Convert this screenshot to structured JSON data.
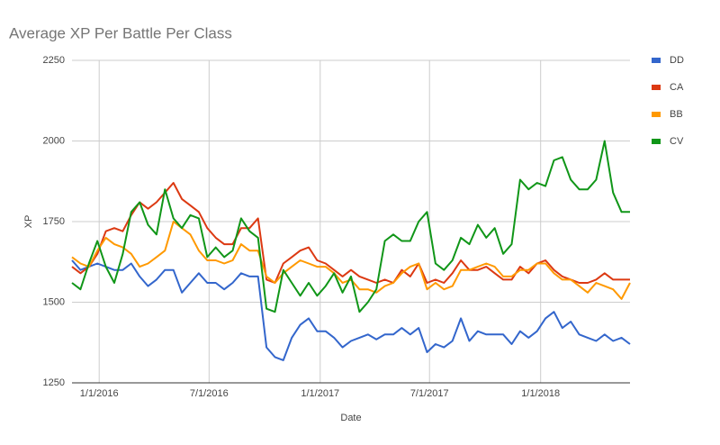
{
  "chart_data": {
    "type": "line",
    "title": "Average XP Per Battle Per Class",
    "x_label": "Date",
    "y_label": "XP",
    "x": [
      "2015-11-17",
      "2015-12-01",
      "2015-12-15",
      "2015-12-29",
      "2016-01-12",
      "2016-01-26",
      "2016-02-09",
      "2016-02-23",
      "2016-03-08",
      "2016-03-22",
      "2016-04-05",
      "2016-04-19",
      "2016-05-03",
      "2016-05-17",
      "2016-05-31",
      "2016-06-14",
      "2016-06-28",
      "2016-07-12",
      "2016-07-26",
      "2016-08-09",
      "2016-08-23",
      "2016-09-06",
      "2016-09-20",
      "2016-10-04",
      "2016-10-18",
      "2016-11-01",
      "2016-11-15",
      "2016-11-29",
      "2016-12-13",
      "2016-12-27",
      "2017-01-10",
      "2017-01-24",
      "2017-02-07",
      "2017-02-21",
      "2017-03-07",
      "2017-03-21",
      "2017-04-04",
      "2017-04-18",
      "2017-05-02",
      "2017-05-16",
      "2017-05-30",
      "2017-06-13",
      "2017-06-27",
      "2017-07-11",
      "2017-07-25",
      "2017-08-08",
      "2017-08-22",
      "2017-09-05",
      "2017-09-19",
      "2017-10-03",
      "2017-10-17",
      "2017-10-31",
      "2017-11-14",
      "2017-11-28",
      "2017-12-12",
      "2017-12-26",
      "2018-01-09",
      "2018-01-23",
      "2018-02-06",
      "2018-02-20",
      "2018-03-06",
      "2018-03-20",
      "2018-04-03",
      "2018-04-17",
      "2018-05-01",
      "2018-05-15",
      "2018-05-29"
    ],
    "series": [
      {
        "name": "DD",
        "color": "#3366cc",
        "values": [
          1630,
          1600,
          1610,
          1620,
          1610,
          1600,
          1600,
          1620,
          1580,
          1550,
          1570,
          1600,
          1600,
          1530,
          1560,
          1590,
          1560,
          1560,
          1540,
          1560,
          1590,
          1580,
          1580,
          1360,
          1330,
          1320,
          1390,
          1430,
          1450,
          1410,
          1410,
          1390,
          1360,
          1380,
          1390,
          1400,
          1385,
          1400,
          1400,
          1420,
          1400,
          1420,
          1345,
          1370,
          1360,
          1380,
          1450,
          1380,
          1410,
          1400,
          1400,
          1400,
          1370,
          1410,
          1390,
          1410,
          1450,
          1470,
          1420,
          1440,
          1400,
          1390,
          1380,
          1400,
          1380,
          1390,
          1370
        ]
      },
      {
        "name": "CA",
        "color": "#dc3912",
        "values": [
          1610,
          1590,
          1610,
          1650,
          1720,
          1730,
          1720,
          1770,
          1810,
          1790,
          1810,
          1840,
          1870,
          1820,
          1800,
          1780,
          1730,
          1700,
          1680,
          1680,
          1730,
          1730,
          1760,
          1570,
          1560,
          1620,
          1640,
          1660,
          1670,
          1630,
          1620,
          1600,
          1580,
          1600,
          1580,
          1570,
          1560,
          1570,
          1560,
          1600,
          1580,
          1620,
          1560,
          1570,
          1560,
          1590,
          1630,
          1600,
          1600,
          1610,
          1590,
          1570,
          1570,
          1610,
          1590,
          1620,
          1630,
          1600,
          1580,
          1570,
          1560,
          1560,
          1570,
          1590,
          1570,
          1570,
          1570
        ]
      },
      {
        "name": "BB",
        "color": "#ff9900",
        "values": [
          1640,
          1620,
          1610,
          1660,
          1700,
          1680,
          1670,
          1650,
          1610,
          1620,
          1640,
          1660,
          1750,
          1730,
          1710,
          1660,
          1630,
          1630,
          1620,
          1630,
          1680,
          1660,
          1660,
          1580,
          1560,
          1590,
          1610,
          1630,
          1620,
          1610,
          1610,
          1590,
          1560,
          1570,
          1540,
          1540,
          1530,
          1550,
          1560,
          1590,
          1610,
          1620,
          1540,
          1560,
          1540,
          1550,
          1600,
          1600,
          1610,
          1620,
          1610,
          1580,
          1580,
          1600,
          1600,
          1620,
          1620,
          1590,
          1570,
          1570,
          1550,
          1530,
          1560,
          1550,
          1540,
          1510,
          1560
        ]
      },
      {
        "name": "CV",
        "color": "#109618",
        "values": [
          1560,
          1540,
          1620,
          1690,
          1610,
          1560,
          1650,
          1780,
          1810,
          1740,
          1710,
          1850,
          1760,
          1730,
          1770,
          1760,
          1640,
          1670,
          1640,
          1660,
          1760,
          1720,
          1700,
          1480,
          1470,
          1600,
          1560,
          1520,
          1560,
          1520,
          1550,
          1590,
          1530,
          1580,
          1470,
          1500,
          1540,
          1690,
          1710,
          1690,
          1690,
          1750,
          1780,
          1620,
          1600,
          1630,
          1700,
          1680,
          1740,
          1700,
          1730,
          1650,
          1680,
          1880,
          1850,
          1870,
          1860,
          1940,
          1950,
          1880,
          1850,
          1850,
          1880,
          2000,
          1840,
          1780,
          1780
        ]
      }
    ],
    "xlim": [
      "2015-11-17",
      "2018-05-29"
    ],
    "xticks": [
      {
        "value": "2016-01-01",
        "label": "1/1/2016"
      },
      {
        "value": "2016-07-01",
        "label": "7/1/2016"
      },
      {
        "value": "2017-01-01",
        "label": "1/1/2017"
      },
      {
        "value": "2017-07-01",
        "label": "7/1/2017"
      },
      {
        "value": "2018-01-01",
        "label": "1/1/2018"
      }
    ],
    "ylim": [
      1250,
      2250
    ],
    "yticks": [
      1250,
      1500,
      1750,
      2000,
      2250
    ],
    "grid": true,
    "legend": "right"
  }
}
